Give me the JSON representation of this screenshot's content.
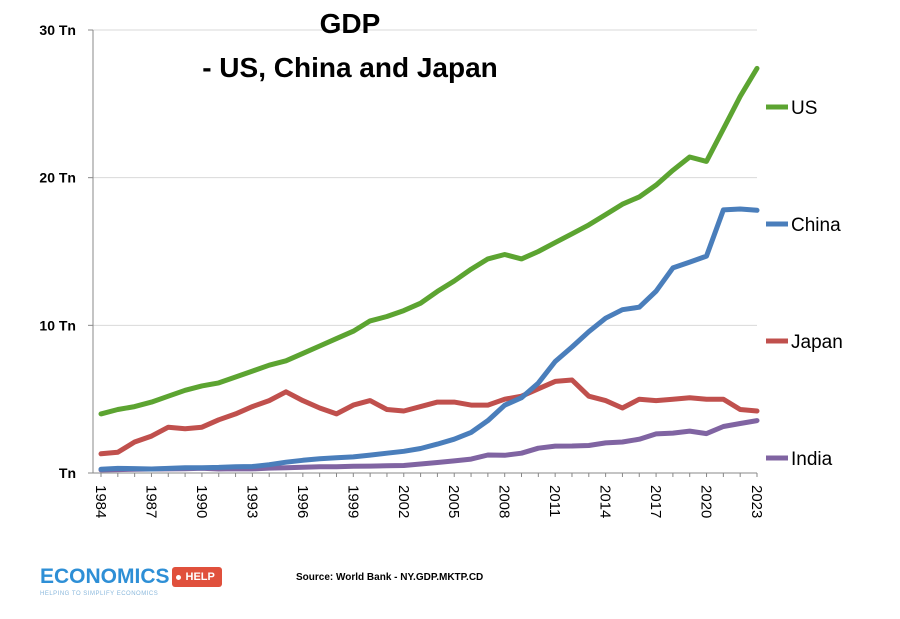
{
  "title_line1": "GDP",
  "title_line2": "- US, China and Japan",
  "source": "Source: World Bank - NY.GDP.MKTP.CD",
  "logo": {
    "word": "ECONOMICS",
    "tag": "HELP",
    "tagline": "HELPING TO SIMPLIFY ECONOMICS"
  },
  "chart_data": {
    "type": "line",
    "title": "GDP - US, China and Japan",
    "xlabel": "",
    "ylabel": "",
    "ylim": [
      0,
      30
    ],
    "yticks": [
      0,
      10,
      20,
      30
    ],
    "ytick_labels": [
      "Tn",
      "10 Tn",
      "20 Tn",
      "30 Tn"
    ],
    "xlim": [
      1984,
      2023
    ],
    "xticks": [
      1984,
      1987,
      1990,
      1993,
      1996,
      1999,
      2002,
      2005,
      2008,
      2011,
      2014,
      2017,
      2020,
      2023
    ],
    "grid": "horizontal",
    "legend": "inline-right",
    "x": [
      1984,
      1985,
      1986,
      1987,
      1988,
      1989,
      1990,
      1991,
      1992,
      1993,
      1994,
      1995,
      1996,
      1997,
      1998,
      1999,
      2000,
      2001,
      2002,
      2003,
      2004,
      2005,
      2006,
      2007,
      2008,
      2009,
      2010,
      2011,
      2012,
      2013,
      2014,
      2015,
      2016,
      2017,
      2018,
      2019,
      2020,
      2021,
      2022,
      2023
    ],
    "series": [
      {
        "name": "US",
        "color": "#5ca431",
        "values": [
          4.0,
          4.3,
          4.5,
          4.8,
          5.2,
          5.6,
          5.9,
          6.1,
          6.5,
          6.9,
          7.3,
          7.6,
          8.1,
          8.6,
          9.1,
          9.6,
          10.3,
          10.6,
          11.0,
          11.5,
          12.3,
          13.0,
          13.8,
          14.5,
          14.8,
          14.5,
          15.0,
          15.6,
          16.2,
          16.8,
          17.5,
          18.2,
          18.7,
          19.5,
          20.5,
          21.4,
          21.1,
          23.3,
          25.5,
          27.4
        ]
      },
      {
        "name": "China",
        "color": "#4a7ebb",
        "values": [
          0.26,
          0.31,
          0.3,
          0.27,
          0.31,
          0.35,
          0.36,
          0.38,
          0.43,
          0.44,
          0.56,
          0.73,
          0.86,
          0.96,
          1.03,
          1.09,
          1.21,
          1.34,
          1.47,
          1.66,
          1.96,
          2.29,
          2.75,
          3.55,
          4.59,
          5.1,
          6.09,
          7.55,
          8.53,
          9.57,
          10.48,
          11.06,
          11.23,
          12.31,
          13.89,
          14.28,
          14.69,
          17.82,
          17.88,
          17.79
        ]
      },
      {
        "name": "Japan",
        "color": "#c0504d",
        "values": [
          1.3,
          1.4,
          2.1,
          2.5,
          3.1,
          3.0,
          3.1,
          3.6,
          4.0,
          4.5,
          4.9,
          5.5,
          4.9,
          4.4,
          4.0,
          4.6,
          4.9,
          4.3,
          4.2,
          4.5,
          4.8,
          4.8,
          4.6,
          4.6,
          5.0,
          5.2,
          5.7,
          6.2,
          6.3,
          5.2,
          4.9,
          4.4,
          5.0,
          4.9,
          5.0,
          5.1,
          5.0,
          5.0,
          4.3,
          4.2
        ]
      },
      {
        "name": "India",
        "color": "#8064a2",
        "values": [
          0.21,
          0.23,
          0.25,
          0.27,
          0.28,
          0.29,
          0.32,
          0.27,
          0.29,
          0.28,
          0.33,
          0.36,
          0.39,
          0.42,
          0.42,
          0.46,
          0.47,
          0.49,
          0.51,
          0.61,
          0.71,
          0.82,
          0.94,
          1.22,
          1.2,
          1.34,
          1.68,
          1.82,
          1.83,
          1.86,
          2.04,
          2.1,
          2.29,
          2.65,
          2.7,
          2.84,
          2.67,
          3.15,
          3.35,
          3.55
        ]
      }
    ]
  }
}
